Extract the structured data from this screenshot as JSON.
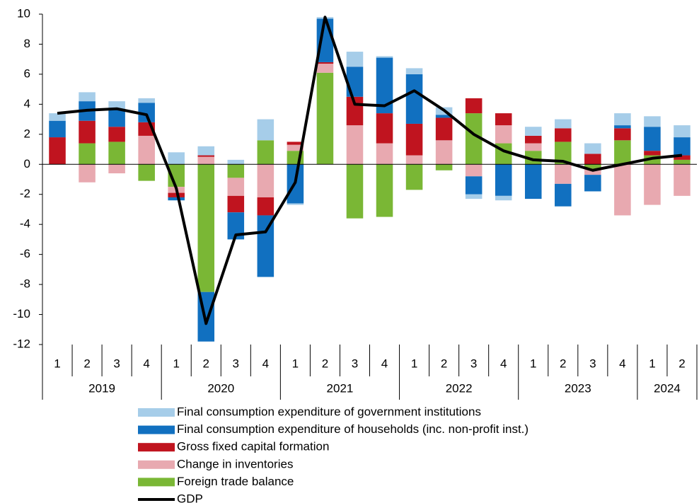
{
  "chart_data": {
    "type": "stacked-bar-line",
    "year_groups": [
      {
        "year": "2019",
        "quarters": [
          "1",
          "2",
          "3",
          "4"
        ]
      },
      {
        "year": "2020",
        "quarters": [
          "1",
          "2",
          "3",
          "4"
        ]
      },
      {
        "year": "2021",
        "quarters": [
          "1",
          "2",
          "3",
          "4"
        ]
      },
      {
        "year": "2022",
        "quarters": [
          "1",
          "2",
          "3",
          "4"
        ]
      },
      {
        "year": "2023",
        "quarters": [
          "1",
          "2",
          "3",
          "4"
        ]
      },
      {
        "year": "2024",
        "quarters": [
          "1",
          "2"
        ]
      }
    ],
    "ylim": [
      -12,
      10
    ],
    "yticks": [
      -12,
      -10,
      -8,
      -6,
      -4,
      -2,
      0,
      2,
      4,
      6,
      8,
      10
    ],
    "series": [
      {
        "name": "Final consumption expenditure of government institutions",
        "type": "bar",
        "color": "#a6cde9",
        "values": [
          0.5,
          0.6,
          0.5,
          0.3,
          0.8,
          0.6,
          0.3,
          1.4,
          -0.1,
          0.1,
          1.0,
          0.1,
          0.4,
          0.5,
          -0.3,
          -0.3,
          0.6,
          0.6,
          0.7,
          0.8,
          0.7,
          0.8
        ]
      },
      {
        "name": "Final consumption expenditure of households (inc. non-profit inst.)",
        "type": "bar",
        "color": "#1170c0",
        "values": [
          1.1,
          1.3,
          1.2,
          1.3,
          -0.2,
          -3.3,
          -1.8,
          -4.1,
          -2.6,
          2.9,
          2.0,
          3.7,
          3.3,
          0.2,
          -1.2,
          -2.1,
          -2.3,
          -1.5,
          -1.1,
          0.2,
          1.6,
          1.2
        ]
      },
      {
        "name": "Gross fixed capital formation",
        "type": "bar",
        "color": "#c0141f",
        "values": [
          1.8,
          1.5,
          1.0,
          0.9,
          -0.3,
          0.1,
          -1.1,
          -1.2,
          0.2,
          0.1,
          1.9,
          2.0,
          2.1,
          1.5,
          1.0,
          0.8,
          0.5,
          0.9,
          0.7,
          0.8,
          0.3,
          0.3
        ]
      },
      {
        "name": "Change in inventories",
        "type": "bar",
        "color": "#e8a9b0",
        "values": [
          0,
          -1.2,
          -0.6,
          1.9,
          -0.4,
          0.5,
          -1.2,
          -2.2,
          0.4,
          0.6,
          2.6,
          1.4,
          0.6,
          1.6,
          -0.8,
          1.2,
          0.5,
          -1.3,
          -0.4,
          -3.4,
          -2.7,
          -2.1
        ]
      },
      {
        "name": "Foreign trade balance",
        "type": "bar",
        "color": "#7ab735",
        "values": [
          0,
          1.4,
          1.5,
          -1.1,
          -1.5,
          -8.5,
          -0.9,
          1.6,
          0.9,
          6.1,
          -3.6,
          -3.5,
          -1.7,
          -0.4,
          3.4,
          1.4,
          0.9,
          1.5,
          -0.3,
          1.6,
          0.6,
          0.3
        ]
      },
      {
        "name": "GDP",
        "type": "line",
        "color": "#000000",
        "values": [
          3.4,
          3.6,
          3.7,
          3.3,
          -1.6,
          -10.6,
          -4.7,
          -4.5,
          -1.2,
          9.8,
          4.0,
          3.9,
          4.9,
          3.6,
          2.0,
          0.9,
          0.3,
          0.2,
          -0.4,
          0.0,
          0.4,
          0.6
        ]
      }
    ]
  }
}
